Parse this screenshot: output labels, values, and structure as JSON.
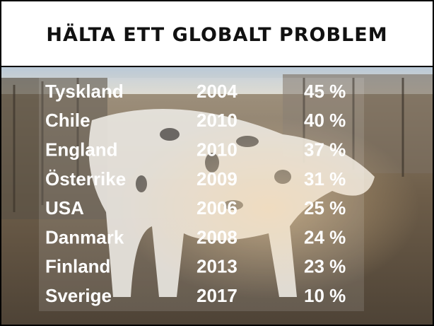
{
  "header": {
    "title": "HÄLTA ETT GLOBALT PROBLEM"
  },
  "table": {
    "rows": [
      [
        "Tyskland",
        "2004",
        "45 %"
      ],
      [
        "Chile",
        "2010",
        "40 %"
      ],
      [
        "England",
        "2010",
        "37 %"
      ],
      [
        "Österrike",
        "2009",
        "31 %"
      ],
      [
        "USA",
        "2006",
        "25 %"
      ],
      [
        "Danmark",
        "2008",
        "24 %"
      ],
      [
        "Finland",
        "2013",
        "23 %"
      ],
      [
        "Sverige",
        "2017",
        "10 %"
      ]
    ]
  }
}
